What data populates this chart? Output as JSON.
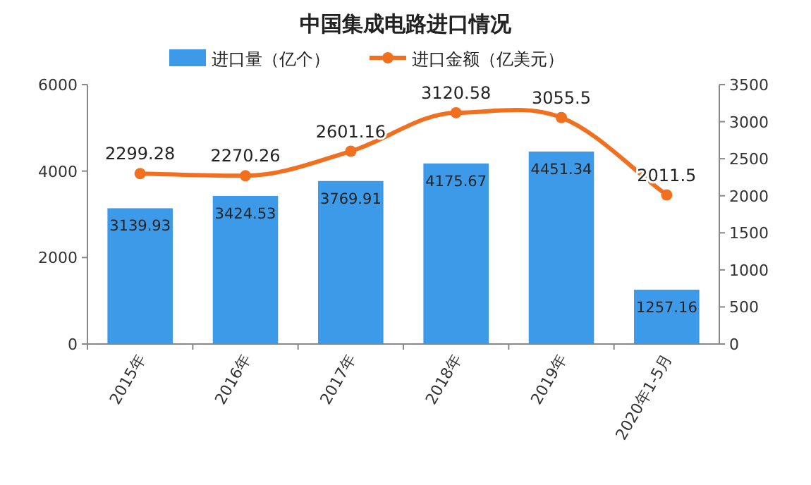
{
  "chart_data": {
    "type": "bar",
    "title": "中国集成电路进口情况",
    "categories": [
      "2015年",
      "2016年",
      "2017年",
      "2018年",
      "2019年",
      "2020年1-5月"
    ],
    "series": [
      {
        "name": "进口量（亿个）",
        "color": "#3d9ae8",
        "values": [
          3139.93,
          3424.53,
          3769.91,
          4175.67,
          4451.34,
          1257.16
        ]
      },
      {
        "name": "进口金额（亿美元）",
        "type": "line",
        "axis": "y2",
        "color": "#f07020",
        "values": [
          2299.28,
          2270.26,
          2601.16,
          3120.58,
          3055.5,
          2011.5
        ]
      }
    ],
    "ylim": [
      0,
      6000
    ],
    "yticks": [
      0,
      2000,
      4000,
      6000
    ],
    "y2lim": [
      0,
      3500
    ],
    "y2ticks": [
      0,
      500,
      1000,
      1500,
      2000,
      2500,
      3000,
      3500
    ],
    "legend": "top",
    "data_labels": true,
    "marker": "circle"
  }
}
